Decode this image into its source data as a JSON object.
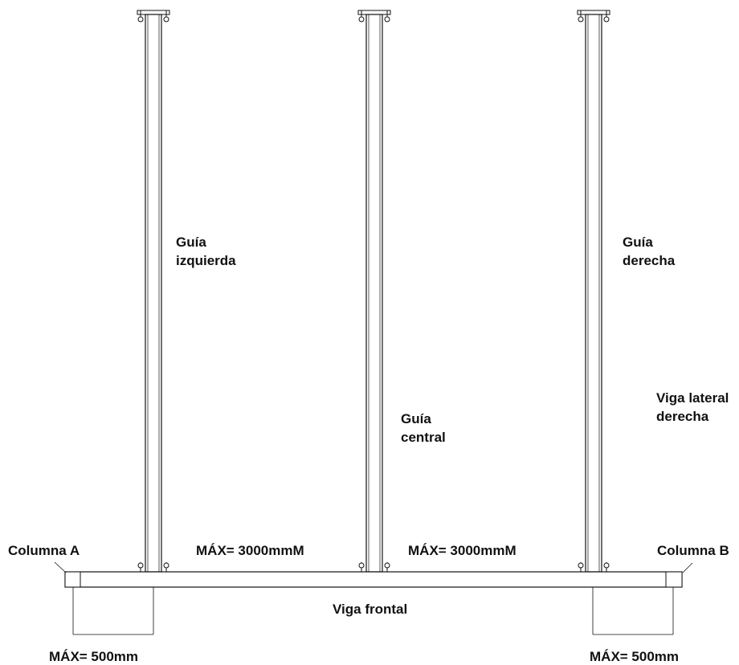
{
  "labels": {
    "guide_left": [
      "Guía",
      "izquierda"
    ],
    "guide_center": [
      "Guía",
      "central"
    ],
    "guide_right": [
      "Guía",
      "derecha"
    ],
    "side_beam_right": [
      "Viga lateral",
      "derecha"
    ],
    "column_a": "Columna A",
    "column_b": "Columna B",
    "front_beam": "Viga frontal",
    "max_span_left": "MÁX= 3000mmM",
    "max_span_right": "MÁX= 3000mmM",
    "max_overhang_left": "MÁX= 500mm",
    "max_overhang_right": "MÁX= 500mm"
  }
}
